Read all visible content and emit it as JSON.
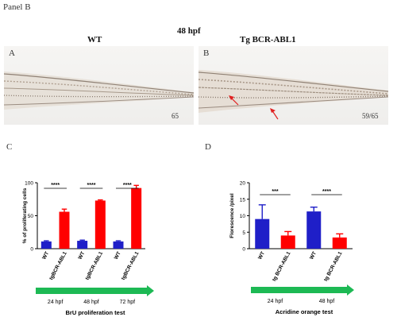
{
  "panel_title": "Panel B",
  "time_label": "48 hpf",
  "headers": {
    "left": "WT",
    "right": "Tg BCR-ABL1"
  },
  "images": [
    {
      "letter": "A",
      "count": "65"
    },
    {
      "letter": "B",
      "count": "59/65"
    }
  ],
  "chart_data": [
    {
      "letter": "C",
      "type": "bar",
      "ylabel": "% of proliferating cells",
      "ylim": [
        0,
        100
      ],
      "yticks": [
        0,
        50,
        100
      ],
      "categories": [
        "WT",
        "tgBCR-ABL1",
        "WT",
        "tgBCR-ABL1",
        "WT",
        "tgBCR-ABL1"
      ],
      "values": [
        11,
        56,
        12,
        73,
        11,
        92
      ],
      "errors": [
        1,
        4,
        1,
        1,
        1,
        4
      ],
      "bar_colors": [
        "#1f1fc8",
        "#ff0000",
        "#1f1fc8",
        "#ff0000",
        "#1f1fc8",
        "#ff0000"
      ],
      "significance": [
        "****",
        "****",
        "****"
      ],
      "group_labels": [
        "24 hpf",
        "48 hpf",
        "72 hpf"
      ],
      "caption": "BrU proliferation test"
    },
    {
      "letter": "D",
      "type": "bar",
      "ylabel": "Florescence /pixel",
      "ylim": [
        0,
        20
      ],
      "yticks": [
        0,
        5,
        10,
        15,
        20
      ],
      "categories": [
        "WT",
        "tg BCR-ABL1",
        "WT",
        "tg BCR-ABL1"
      ],
      "values": [
        9,
        4,
        11.3,
        3.4
      ],
      "errors": [
        4.3,
        1.2,
        1.3,
        1.1
      ],
      "bar_colors": [
        "#1f1fc8",
        "#ff0000",
        "#1f1fc8",
        "#ff0000"
      ],
      "significance": [
        "***",
        "****"
      ],
      "group_labels": [
        "24 hpf",
        "48 hpf"
      ],
      "caption": "Acridine orange test"
    }
  ],
  "colors": {
    "arrow": "#1db954",
    "wt": "#1f1fc8",
    "tg": "#ff0000",
    "pointer": "#e02020"
  }
}
